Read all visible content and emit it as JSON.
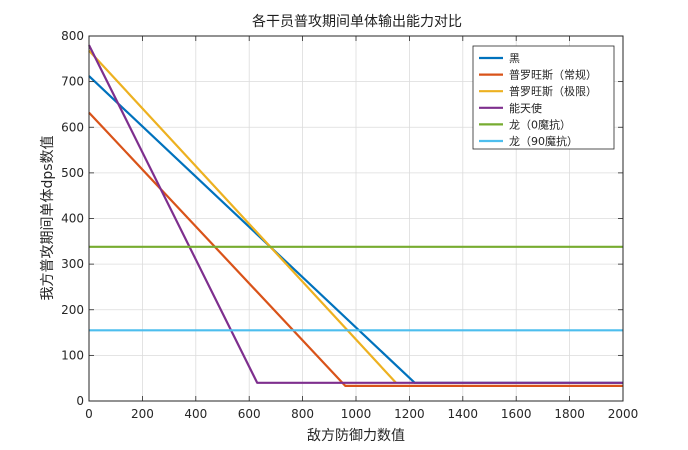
{
  "chart_data": {
    "type": "line",
    "title": "各干员普攻期间单体输出能力对比",
    "xlabel": "敌方防御力数值",
    "ylabel": "我方普攻期间单体dps数值",
    "xlim": [
      0,
      2000
    ],
    "ylim": [
      0,
      800
    ],
    "xticks": [
      0,
      200,
      400,
      600,
      800,
      1000,
      1200,
      1400,
      1600,
      1800,
      2000
    ],
    "yticks": [
      0,
      100,
      200,
      300,
      400,
      500,
      600,
      700,
      800
    ],
    "xtick_labels": [
      "0",
      "200",
      "400",
      "600",
      "800",
      "1000",
      "1200",
      "1400",
      "1600",
      "1800",
      "2000"
    ],
    "ytick_labels": [
      "0",
      "100",
      "200",
      "300",
      "400",
      "500",
      "600",
      "700",
      "800"
    ],
    "grid": true,
    "legend_position": "top-right",
    "series": [
      {
        "name": "黑",
        "color": "#0072BD",
        "x": [
          0,
          1220,
          2000
        ],
        "y": [
          712,
          40,
          40
        ]
      },
      {
        "name": "普罗旺斯（常规）",
        "color": "#D95319",
        "x": [
          0,
          960,
          2000
        ],
        "y": [
          632,
          33,
          33
        ]
      },
      {
        "name": "普罗旺斯（极限）",
        "color": "#EDB120",
        "x": [
          0,
          1150
        ],
        "y": [
          768,
          40
        ]
      },
      {
        "name": "能天使",
        "color": "#7E2F8E",
        "x": [
          0,
          630,
          2000
        ],
        "y": [
          780,
          40,
          40
        ]
      },
      {
        "name": "龙（0魔抗）",
        "color": "#77AC30",
        "x": [
          0,
          2000
        ],
        "y": [
          338,
          338
        ]
      },
      {
        "name": "龙（90魔抗）",
        "color": "#4DBEEE",
        "x": [
          0,
          2000
        ],
        "y": [
          155,
          155
        ]
      }
    ]
  }
}
